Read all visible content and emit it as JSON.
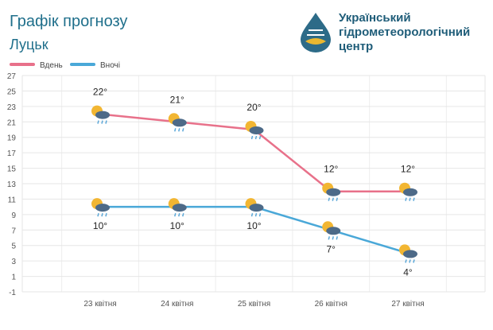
{
  "chart_data": {
    "type": "line",
    "title": "Графік прогнозу",
    "subtitle": "Луцьк",
    "categories": [
      "23 квітня",
      "24 квітня",
      "25 квітня",
      "26 квітня",
      "27 квітня"
    ],
    "series": [
      {
        "name": "Вдень",
        "color": "#e8718a",
        "values": [
          22,
          21,
          20,
          12,
          12
        ],
        "value_labels": [
          "22°",
          "21°",
          "20°",
          "12°",
          "12°"
        ]
      },
      {
        "name": "Вночі",
        "color": "#4aa8d8",
        "values": [
          10,
          10,
          10,
          7,
          4
        ],
        "value_labels": [
          "10°",
          "10°",
          "10°",
          "7°",
          "4°"
        ]
      }
    ],
    "ylim": [
      -1,
      27
    ],
    "yticks": [
      -1,
      1,
      3,
      5,
      7,
      9,
      11,
      13,
      15,
      17,
      19,
      21,
      23,
      25,
      27
    ],
    "grid": true
  },
  "logo": {
    "lines": [
      "Український",
      "гідрометеорологічний",
      "центр"
    ]
  }
}
